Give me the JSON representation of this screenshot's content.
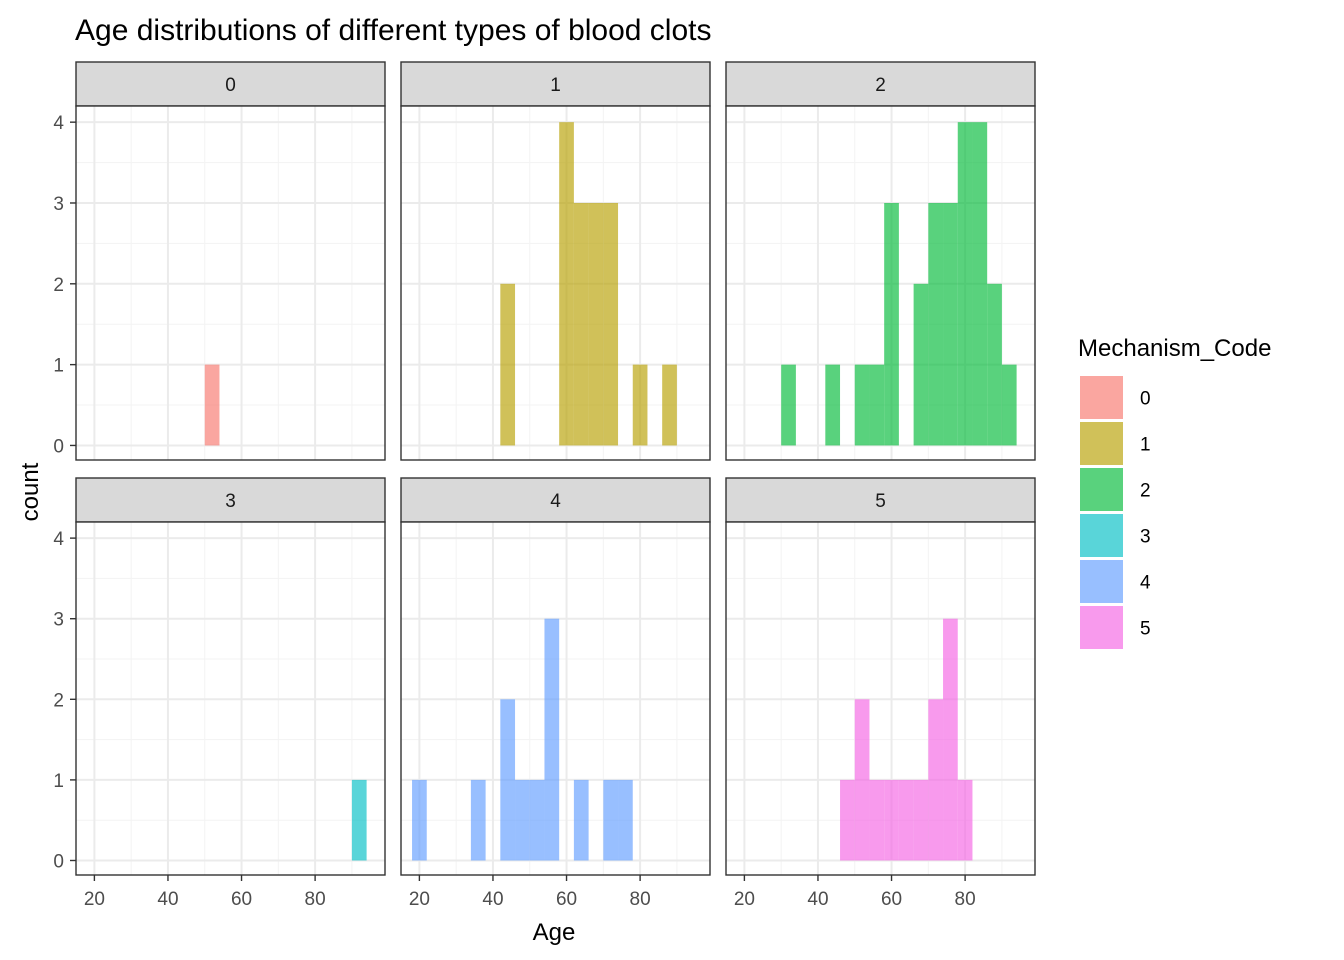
{
  "title": "Age distributions of different types of blood clots",
  "colors": {
    "0": "#F8766D",
    "1": "#B79F00",
    "2": "#00BA38",
    "3": "#00BFC4",
    "4": "#619CFF",
    "5": "#F564E3"
  },
  "chart_data": {
    "type": "bar",
    "subtype": "faceted histogram",
    "title": "Age distributions of different types of blood clots",
    "xlabel": "Age",
    "ylabel": "count",
    "xlim": [
      15,
      99
    ],
    "ylim": [
      -0.18,
      4.2
    ],
    "x_ticks": [
      20,
      40,
      60,
      80
    ],
    "y_ticks": [
      0,
      1,
      2,
      3,
      4
    ],
    "bin_width": 4,
    "grid": true,
    "legend": {
      "title": "Mechanism_Code",
      "position": "right",
      "entries": [
        "0",
        "1",
        "2",
        "3",
        "4",
        "5"
      ]
    },
    "facets": [
      {
        "label": "0",
        "bins": [
          {
            "x0": 50,
            "x1": 54,
            "count": 1
          }
        ]
      },
      {
        "label": "1",
        "bins": [
          {
            "x0": 42,
            "x1": 46,
            "count": 2
          },
          {
            "x0": 58,
            "x1": 62,
            "count": 4
          },
          {
            "x0": 62,
            "x1": 66,
            "count": 3
          },
          {
            "x0": 66,
            "x1": 70,
            "count": 3
          },
          {
            "x0": 70,
            "x1": 74,
            "count": 3
          },
          {
            "x0": 78,
            "x1": 82,
            "count": 1
          },
          {
            "x0": 86,
            "x1": 90,
            "count": 1
          }
        ]
      },
      {
        "label": "2",
        "bins": [
          {
            "x0": 30,
            "x1": 34,
            "count": 1
          },
          {
            "x0": 42,
            "x1": 46,
            "count": 1
          },
          {
            "x0": 50,
            "x1": 54,
            "count": 1
          },
          {
            "x0": 54,
            "x1": 58,
            "count": 1
          },
          {
            "x0": 58,
            "x1": 62,
            "count": 3
          },
          {
            "x0": 66,
            "x1": 70,
            "count": 2
          },
          {
            "x0": 70,
            "x1": 74,
            "count": 3
          },
          {
            "x0": 74,
            "x1": 78,
            "count": 3
          },
          {
            "x0": 78,
            "x1": 82,
            "count": 4
          },
          {
            "x0": 82,
            "x1": 86,
            "count": 4
          },
          {
            "x0": 86,
            "x1": 90,
            "count": 2
          },
          {
            "x0": 90,
            "x1": 94,
            "count": 1
          }
        ]
      },
      {
        "label": "3",
        "bins": [
          {
            "x0": 90,
            "x1": 94,
            "count": 1
          }
        ]
      },
      {
        "label": "4",
        "bins": [
          {
            "x0": 18,
            "x1": 22,
            "count": 1
          },
          {
            "x0": 34,
            "x1": 38,
            "count": 1
          },
          {
            "x0": 42,
            "x1": 46,
            "count": 2
          },
          {
            "x0": 46,
            "x1": 50,
            "count": 1
          },
          {
            "x0": 50,
            "x1": 54,
            "count": 1
          },
          {
            "x0": 54,
            "x1": 58,
            "count": 3
          },
          {
            "x0": 62,
            "x1": 66,
            "count": 1
          },
          {
            "x0": 70,
            "x1": 74,
            "count": 1
          },
          {
            "x0": 74,
            "x1": 78,
            "count": 1
          }
        ]
      },
      {
        "label": "5",
        "bins": [
          {
            "x0": 46,
            "x1": 50,
            "count": 1
          },
          {
            "x0": 50,
            "x1": 54,
            "count": 2
          },
          {
            "x0": 54,
            "x1": 58,
            "count": 1
          },
          {
            "x0": 58,
            "x1": 62,
            "count": 1
          },
          {
            "x0": 62,
            "x1": 66,
            "count": 1
          },
          {
            "x0": 66,
            "x1": 70,
            "count": 1
          },
          {
            "x0": 70,
            "x1": 74,
            "count": 2
          },
          {
            "x0": 74,
            "x1": 78,
            "count": 3
          },
          {
            "x0": 78,
            "x1": 82,
            "count": 1
          }
        ]
      }
    ]
  }
}
